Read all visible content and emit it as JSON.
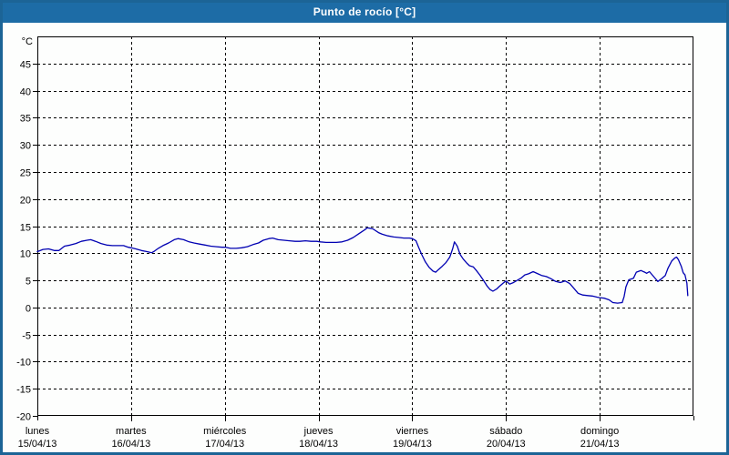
{
  "window": {
    "title": "Punto de rocío [°C]"
  },
  "colors": {
    "titlebar_bg": "#1d6ca6",
    "window_border": "#1c6496",
    "plot_background": "#fdfefd",
    "grid_color": "#000000",
    "axis_color": "#000000",
    "line_color": "#0000b2",
    "title_text": "#ffffff",
    "label_text": "#000000"
  },
  "chart_data": {
    "type": "line",
    "title": "Punto de rocío [°C]",
    "unit_label": "°C",
    "ylim": [
      -20,
      50
    ],
    "yticks": [
      45,
      40,
      35,
      30,
      25,
      20,
      15,
      10,
      5,
      0,
      -5,
      -10,
      -15,
      -20
    ],
    "grid": "dashed",
    "legend": "none",
    "x_total_days": 7,
    "x_categories": [
      {
        "day": "lunes",
        "date": "15/04/13"
      },
      {
        "day": "martes",
        "date": "16/04/13"
      },
      {
        "day": "miércoles",
        "date": "17/04/13"
      },
      {
        "day": "jueves",
        "date": "18/04/13"
      },
      {
        "day": "viernes",
        "date": "19/04/13"
      },
      {
        "day": "sábado",
        "date": "20/04/13"
      },
      {
        "day": "domingo",
        "date": "21/04/13"
      }
    ],
    "series": [
      {
        "name": "Punto de rocío",
        "color": "#0000b2",
        "points": [
          [
            0,
            10.3
          ],
          [
            0.06,
            10.7
          ],
          [
            0.12,
            10.8
          ],
          [
            0.18,
            10.5
          ],
          [
            0.23,
            10.5
          ],
          [
            0.29,
            11.3
          ],
          [
            0.35,
            11.5
          ],
          [
            0.41,
            11.8
          ],
          [
            0.47,
            12.2
          ],
          [
            0.53,
            12.4
          ],
          [
            0.57,
            12.5
          ],
          [
            0.62,
            12.2
          ],
          [
            0.68,
            11.8
          ],
          [
            0.74,
            11.5
          ],
          [
            0.8,
            11.4
          ],
          [
            0.86,
            11.4
          ],
          [
            0.92,
            11.4
          ],
          [
            0.97,
            11.1
          ],
          [
            1.0,
            11.0
          ],
          [
            1.05,
            10.8
          ],
          [
            1.11,
            10.5
          ],
          [
            1.17,
            10.3
          ],
          [
            1.22,
            10.1
          ],
          [
            1.25,
            10.4
          ],
          [
            1.29,
            10.9
          ],
          [
            1.34,
            11.4
          ],
          [
            1.4,
            11.9
          ],
          [
            1.46,
            12.5
          ],
          [
            1.5,
            12.7
          ],
          [
            1.56,
            12.5
          ],
          [
            1.62,
            12.1
          ],
          [
            1.67,
            11.9
          ],
          [
            1.73,
            11.7
          ],
          [
            1.79,
            11.5
          ],
          [
            1.85,
            11.3
          ],
          [
            1.91,
            11.2
          ],
          [
            1.97,
            11.1
          ],
          [
            2.01,
            11.1
          ],
          [
            2.06,
            10.9
          ],
          [
            2.12,
            10.9
          ],
          [
            2.18,
            11.0
          ],
          [
            2.24,
            11.2
          ],
          [
            2.3,
            11.6
          ],
          [
            2.36,
            11.9
          ],
          [
            2.41,
            12.4
          ],
          [
            2.47,
            12.7
          ],
          [
            2.51,
            12.8
          ],
          [
            2.57,
            12.5
          ],
          [
            2.63,
            12.4
          ],
          [
            2.69,
            12.3
          ],
          [
            2.75,
            12.2
          ],
          [
            2.8,
            12.2
          ],
          [
            2.86,
            12.3
          ],
          [
            2.92,
            12.2
          ],
          [
            2.98,
            12.2
          ],
          [
            3.02,
            12.1
          ],
          [
            3.08,
            12.0
          ],
          [
            3.14,
            12.0
          ],
          [
            3.19,
            12.0
          ],
          [
            3.25,
            12.1
          ],
          [
            3.31,
            12.4
          ],
          [
            3.37,
            12.9
          ],
          [
            3.43,
            13.6
          ],
          [
            3.49,
            14.3
          ],
          [
            3.52,
            14.7
          ],
          [
            3.58,
            14.5
          ],
          [
            3.64,
            13.8
          ],
          [
            3.68,
            13.5
          ],
          [
            3.74,
            13.2
          ],
          [
            3.8,
            13.0
          ],
          [
            3.86,
            12.9
          ],
          [
            3.91,
            12.8
          ],
          [
            3.97,
            12.8
          ],
          [
            4.0,
            12.7
          ],
          [
            4.04,
            12.3
          ],
          [
            4.07,
            11.0
          ],
          [
            4.1,
            9.8
          ],
          [
            4.14,
            8.4
          ],
          [
            4.18,
            7.4
          ],
          [
            4.22,
            6.7
          ],
          [
            4.25,
            6.5
          ],
          [
            4.28,
            7.0
          ],
          [
            4.32,
            7.6
          ],
          [
            4.36,
            8.3
          ],
          [
            4.4,
            9.3
          ],
          [
            4.43,
            10.8
          ],
          [
            4.45,
            12.1
          ],
          [
            4.48,
            11.3
          ],
          [
            4.51,
            9.8
          ],
          [
            4.54,
            9.0
          ],
          [
            4.58,
            8.2
          ],
          [
            4.61,
            7.7
          ],
          [
            4.65,
            7.5
          ],
          [
            4.68,
            6.9
          ],
          [
            4.72,
            6.0
          ],
          [
            4.76,
            5.0
          ],
          [
            4.8,
            3.9
          ],
          [
            4.83,
            3.3
          ],
          [
            4.86,
            3.0
          ],
          [
            4.9,
            3.4
          ],
          [
            4.93,
            3.9
          ],
          [
            4.97,
            4.5
          ],
          [
            5.0,
            4.9
          ],
          [
            5.04,
            4.3
          ],
          [
            5.08,
            4.6
          ],
          [
            5.12,
            5.0
          ],
          [
            5.16,
            5.4
          ],
          [
            5.2,
            6.0
          ],
          [
            5.24,
            6.2
          ],
          [
            5.29,
            6.6
          ],
          [
            5.34,
            6.2
          ],
          [
            5.38,
            5.9
          ],
          [
            5.43,
            5.7
          ],
          [
            5.48,
            5.3
          ],
          [
            5.53,
            4.8
          ],
          [
            5.58,
            4.6
          ],
          [
            5.63,
            4.9
          ],
          [
            5.68,
            4.4
          ],
          [
            5.73,
            3.4
          ],
          [
            5.77,
            2.6
          ],
          [
            5.82,
            2.3
          ],
          [
            5.87,
            2.2
          ],
          [
            5.92,
            2.1
          ],
          [
            5.97,
            1.9
          ],
          [
            6.0,
            1.8
          ],
          [
            6.05,
            1.7
          ],
          [
            6.1,
            1.4
          ],
          [
            6.14,
            0.9
          ],
          [
            6.19,
            0.8
          ],
          [
            6.24,
            0.9
          ],
          [
            6.26,
            2.0
          ],
          [
            6.28,
            3.8
          ],
          [
            6.31,
            5.1
          ],
          [
            6.36,
            5.4
          ],
          [
            6.39,
            6.5
          ],
          [
            6.44,
            6.8
          ],
          [
            6.48,
            6.5
          ],
          [
            6.5,
            6.3
          ],
          [
            6.53,
            6.6
          ],
          [
            6.58,
            5.6
          ],
          [
            6.62,
            4.8
          ],
          [
            6.66,
            5.3
          ],
          [
            6.7,
            5.9
          ],
          [
            6.73,
            7.3
          ],
          [
            6.77,
            8.6
          ],
          [
            6.8,
            9.1
          ],
          [
            6.82,
            9.3
          ],
          [
            6.84,
            8.8
          ],
          [
            6.87,
            7.6
          ],
          [
            6.89,
            6.4
          ],
          [
            6.91,
            6.0
          ],
          [
            6.93,
            4.5
          ],
          [
            6.94,
            2.2
          ]
        ]
      }
    ]
  }
}
